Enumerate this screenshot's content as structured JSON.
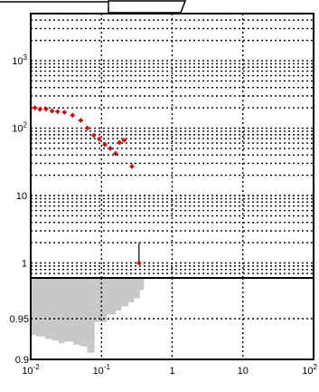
{
  "chart_data": [
    {
      "type": "scatter",
      "x_scale": "log",
      "y_scale": "log",
      "xlim": [
        0.01,
        100
      ],
      "ylim": [
        0.6,
        5000
      ],
      "grid": true,
      "y_ticks": [
        {
          "value": 1,
          "label": "1"
        },
        {
          "value": 10,
          "label": "10"
        },
        {
          "value": 100,
          "label": "10",
          "exp": "2"
        },
        {
          "value": 1000,
          "label": "10",
          "exp": "3"
        }
      ],
      "marker_color": "#d40000",
      "series": [
        {
          "x": [
            0.0115,
            0.0135,
            0.0165,
            0.02,
            0.024,
            0.03,
            0.039,
            0.051,
            0.063,
            0.078,
            0.093,
            0.112,
            0.133,
            0.158,
            0.18,
            0.21,
            0.27,
            0.34
          ],
          "y": [
            200,
            190,
            192,
            180,
            176,
            172,
            155,
            130,
            100,
            78,
            69,
            57,
            50,
            42,
            61,
            66,
            27,
            1
          ],
          "y_err_upper": [
            null,
            null,
            null,
            null,
            null,
            null,
            null,
            null,
            null,
            null,
            null,
            null,
            null,
            null,
            null,
            null,
            null,
            1
          ]
        }
      ]
    },
    {
      "type": "area",
      "x_scale": "log",
      "xlim": [
        0.01,
        100
      ],
      "ylim": [
        0.9,
        1.0
      ],
      "grid": true,
      "fill_color": "#c8c8c8",
      "x_ticks": [
        {
          "value": 0.01,
          "label": "10",
          "exp": "-2"
        },
        {
          "value": 0.1,
          "label": "10",
          "exp": "-1"
        },
        {
          "value": 1,
          "label": "1"
        },
        {
          "value": 10,
          "label": "10"
        },
        {
          "value": 100,
          "label": "10",
          "exp": "2"
        }
      ],
      "y_ticks": [
        {
          "value": 0.9,
          "label": "0.9"
        },
        {
          "value": 0.95,
          "label": "0.95"
        }
      ],
      "steps": [
        {
          "x0": 0.01,
          "x1": 0.012,
          "y": 0.93
        },
        {
          "x0": 0.012,
          "x1": 0.016,
          "y": 0.928
        },
        {
          "x0": 0.016,
          "x1": 0.02,
          "y": 0.925
        },
        {
          "x0": 0.02,
          "x1": 0.025,
          "y": 0.923
        },
        {
          "x0": 0.025,
          "x1": 0.03,
          "y": 0.92
        },
        {
          "x0": 0.03,
          "x1": 0.04,
          "y": 0.922
        },
        {
          "x0": 0.04,
          "x1": 0.05,
          "y": 0.918
        },
        {
          "x0": 0.05,
          "x1": 0.063,
          "y": 0.916
        },
        {
          "x0": 0.063,
          "x1": 0.08,
          "y": 0.908
        },
        {
          "x0": 0.08,
          "x1": 0.12,
          "y": 0.946
        },
        {
          "x0": 0.12,
          "x1": 0.16,
          "y": 0.955
        },
        {
          "x0": 0.16,
          "x1": 0.19,
          "y": 0.96
        },
        {
          "x0": 0.19,
          "x1": 0.24,
          "y": 0.965
        },
        {
          "x0": 0.24,
          "x1": 0.29,
          "y": 0.97
        },
        {
          "x0": 0.29,
          "x1": 0.35,
          "y": 0.975
        },
        {
          "x0": 0.35,
          "x1": 0.4,
          "y": 0.985
        }
      ]
    }
  ]
}
